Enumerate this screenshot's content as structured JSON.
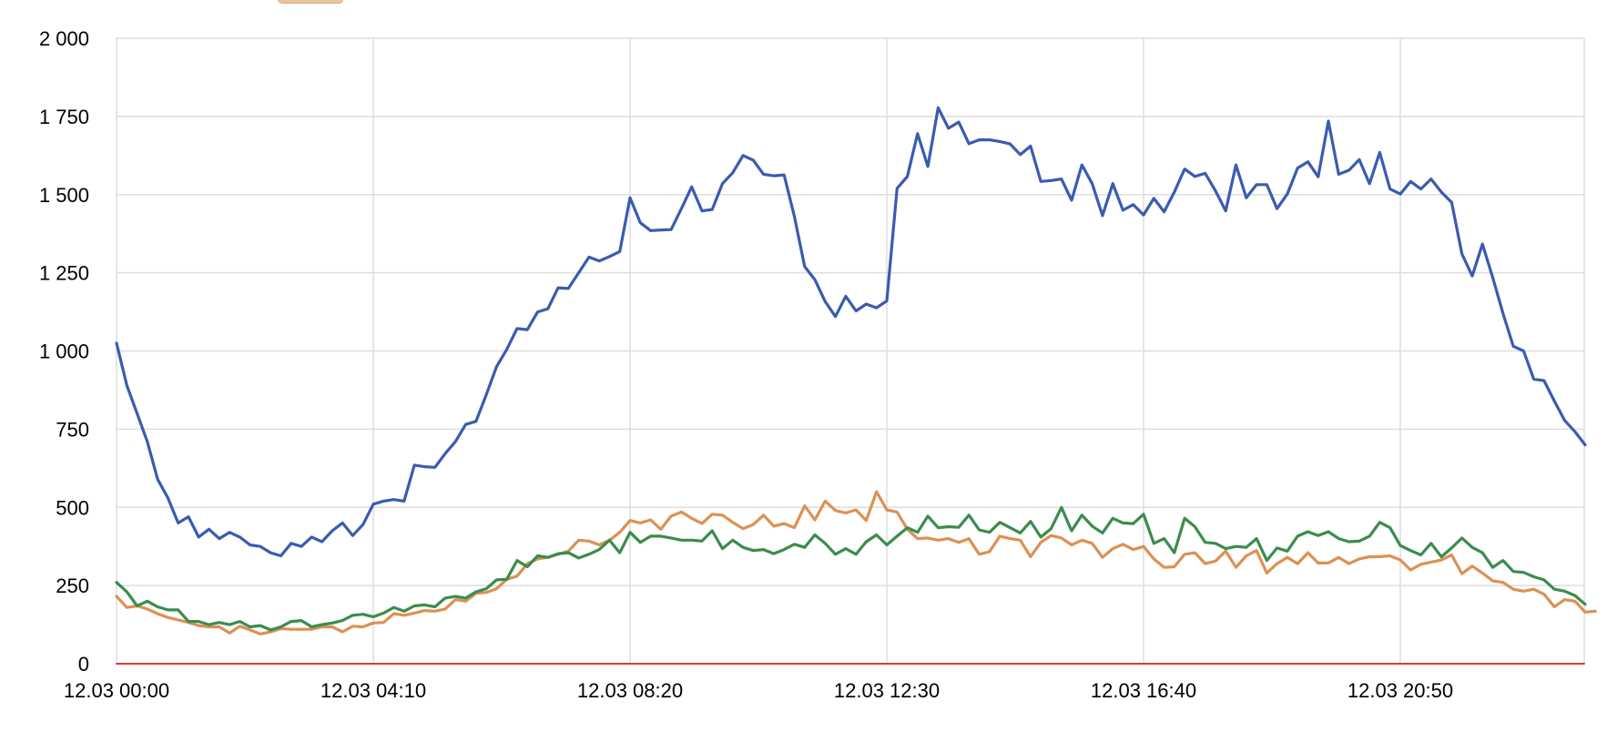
{
  "chart_data": {
    "type": "line",
    "title": "",
    "xlabel": "",
    "ylabel": "",
    "x_tick_labels": [
      "12.03 00:00",
      "12.03 04:10",
      "12.03 08:20",
      "12.03 12:30",
      "12.03 16:40",
      "12.03 20:50"
    ],
    "y_tick_labels": [
      "0",
      "250",
      "500",
      "750",
      "1 000",
      "1 250",
      "1 500",
      "1 750",
      "2 000"
    ],
    "y_ticks": [
      0,
      250,
      500,
      750,
      1000,
      1250,
      1500,
      1750,
      2000
    ],
    "ylim": [
      0,
      2000
    ],
    "x_start_minutes": 0,
    "x_step_minutes": 10,
    "grid": true,
    "colors": {
      "blue": "#3a5bb0",
      "orange": "#dc9152",
      "green": "#3b8c4e",
      "red": "#e0392b",
      "grid": "#dedede",
      "legend_swatch": "#e9c79b"
    },
    "series": [
      {
        "color": "#3a5bb0",
        "values": [
          1025,
          890,
          800,
          710,
          590,
          530,
          450,
          470,
          405,
          430,
          400,
          420,
          405,
          380,
          375,
          355,
          345,
          385,
          375,
          405,
          390,
          425,
          450,
          410,
          445,
          510,
          520,
          525,
          520,
          635,
          630,
          628,
          672,
          710,
          765,
          775,
          860,
          950,
          1005,
          1072,
          1068,
          1125,
          1135,
          1202,
          1200,
          1250,
          1300,
          1288,
          1302,
          1318,
          1490,
          1410,
          1385,
          1387,
          1388,
          1455,
          1525,
          1448,
          1452,
          1535,
          1570,
          1625,
          1610,
          1565,
          1560,
          1563,
          1430,
          1270,
          1228,
          1158,
          1110,
          1175,
          1128,
          1150,
          1138,
          1160,
          1520,
          1558,
          1695,
          1590,
          1778,
          1712,
          1732,
          1663,
          1675,
          1675,
          1670,
          1662,
          1628,
          1655,
          1542,
          1545,
          1550,
          1482,
          1595,
          1535,
          1433,
          1535,
          1450,
          1468,
          1435,
          1488,
          1445,
          1508,
          1582,
          1558,
          1568,
          1512,
          1448,
          1595,
          1490,
          1532,
          1532,
          1455,
          1502,
          1585,
          1605,
          1557,
          1735,
          1565,
          1578,
          1612,
          1535,
          1635,
          1518,
          1502,
          1542,
          1518,
          1550,
          1508,
          1475,
          1310,
          1240,
          1342,
          1235,
          1120,
          1015,
          1000,
          910,
          905,
          840,
          778,
          742,
          700
        ]
      },
      {
        "color": "#dc9152",
        "values": [
          215,
          180,
          185,
          175,
          160,
          148,
          140,
          132,
          122,
          118,
          118,
          98,
          120,
          108,
          95,
          102,
          112,
          110,
          110,
          110,
          118,
          118,
          102,
          120,
          118,
          130,
          132,
          160,
          155,
          162,
          170,
          168,
          175,
          205,
          200,
          225,
          228,
          240,
          270,
          280,
          320,
          335,
          340,
          350,
          360,
          395,
          392,
          380,
          395,
          420,
          458,
          450,
          460,
          430,
          472,
          485,
          465,
          448,
          478,
          475,
          452,
          432,
          445,
          475,
          440,
          448,
          435,
          505,
          460,
          520,
          490,
          482,
          492,
          458,
          550,
          492,
          485,
          430,
          400,
          402,
          395,
          400,
          388,
          400,
          350,
          358,
          408,
          400,
          395,
          342,
          388,
          410,
          402,
          380,
          395,
          385,
          340,
          368,
          382,
          365,
          375,
          335,
          308,
          310,
          350,
          355,
          320,
          328,
          360,
          308,
          345,
          362,
          290,
          320,
          340,
          320,
          355,
          322,
          322,
          340,
          320,
          335,
          342,
          342,
          345,
          332,
          300,
          318,
          325,
          332,
          348,
          288,
          312,
          290,
          265,
          260,
          238,
          232,
          238,
          222,
          182,
          205,
          200,
          165,
          168
        ]
      },
      {
        "color": "#3b8c4e",
        "values": [
          260,
          230,
          185,
          200,
          182,
          172,
          172,
          135,
          135,
          125,
          132,
          125,
          135,
          118,
          122,
          108,
          118,
          135,
          138,
          118,
          125,
          130,
          138,
          155,
          158,
          150,
          162,
          180,
          168,
          185,
          188,
          182,
          210,
          215,
          210,
          230,
          240,
          268,
          270,
          330,
          310,
          345,
          340,
          352,
          355,
          338,
          350,
          365,
          395,
          355,
          420,
          388,
          408,
          408,
          402,
          395,
          395,
          392,
          425,
          368,
          395,
          372,
          362,
          365,
          352,
          365,
          382,
          372,
          412,
          385,
          350,
          368,
          350,
          390,
          412,
          380,
          408,
          435,
          420,
          472,
          435,
          438,
          436,
          475,
          428,
          420,
          452,
          435,
          418,
          455,
          405,
          432,
          500,
          425,
          475,
          440,
          418,
          465,
          450,
          448,
          478,
          385,
          400,
          355,
          465,
          438,
          388,
          385,
          368,
          375,
          372,
          400,
          330,
          370,
          360,
          408,
          422,
          410,
          422,
          400,
          390,
          392,
          408,
          452,
          435,
          378,
          362,
          348,
          385,
          342,
          370,
          402,
          372,
          355,
          308,
          330,
          295,
          292,
          278,
          268,
          238,
          232,
          218,
          190
        ]
      },
      {
        "color": "#e0392b",
        "values": [
          0,
          0
        ]
      }
    ]
  }
}
